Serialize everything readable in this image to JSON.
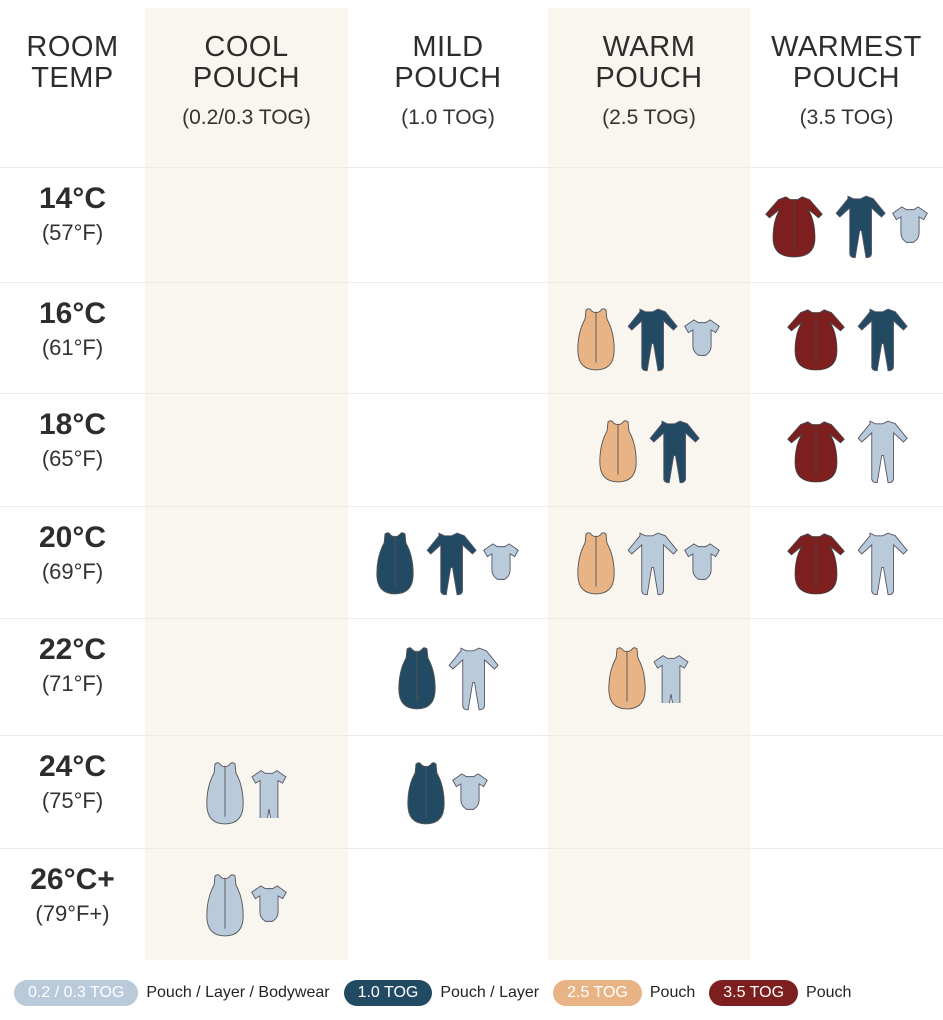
{
  "colors": {
    "cool": "#b9cada",
    "mild": "#234a63",
    "warm": "#e8b485",
    "warmest": "#7e1f1f",
    "column_bg": "#f9f6ef"
  },
  "header": {
    "temp": "ROOM\nTEMP",
    "columns": [
      {
        "title": "COOL\nPOUCH",
        "tog": "(0.2/0.3 TOG)"
      },
      {
        "title": "MILD\nPOUCH",
        "tog": "(1.0 TOG)"
      },
      {
        "title": "WARM\nPOUCH",
        "tog": "(2.5 TOG)"
      },
      {
        "title": "WARMEST\nPOUCH",
        "tog": "(3.5 TOG)"
      }
    ]
  },
  "rows": [
    {
      "c": "14°C",
      "f": "(57°F)",
      "cells": [
        [],
        [],
        [],
        [
          [
            "sleeved-pouch-icon",
            "warmest"
          ],
          [
            "footie-icon",
            "mild"
          ],
          [
            "bodysuit-icon",
            "cool"
          ]
        ]
      ]
    },
    {
      "c": "16°C",
      "f": "(61°F)",
      "cells": [
        [],
        [],
        [
          [
            "pouch-icon",
            "warm"
          ],
          [
            "footie-icon",
            "mild"
          ],
          [
            "bodysuit-icon",
            "cool"
          ]
        ],
        [
          [
            "sleeved-pouch-icon",
            "warmest"
          ],
          [
            "footie-icon",
            "mild"
          ]
        ]
      ]
    },
    {
      "c": "18°C",
      "f": "(65°F)",
      "cells": [
        [],
        [],
        [
          [
            "pouch-icon",
            "warm"
          ],
          [
            "footie-icon",
            "mild"
          ]
        ],
        [
          [
            "sleeved-pouch-icon",
            "warmest"
          ],
          [
            "footie-icon",
            "cool"
          ]
        ]
      ]
    },
    {
      "c": "20°C",
      "f": "(69°F)",
      "cells": [
        [],
        [
          [
            "pouch-icon",
            "mild"
          ],
          [
            "footie-icon",
            "mild"
          ],
          [
            "bodysuit-icon",
            "cool"
          ]
        ],
        [
          [
            "pouch-icon",
            "warm"
          ],
          [
            "footie-icon",
            "cool"
          ],
          [
            "bodysuit-icon",
            "cool"
          ]
        ],
        [
          [
            "sleeved-pouch-icon",
            "warmest"
          ],
          [
            "footie-icon",
            "cool"
          ]
        ]
      ]
    },
    {
      "c": "22°C",
      "f": "(71°F)",
      "cells": [
        [],
        [
          [
            "pouch-icon",
            "mild"
          ],
          [
            "footie-icon",
            "cool"
          ]
        ],
        [
          [
            "pouch-icon",
            "warm"
          ],
          [
            "romper-icon",
            "cool"
          ]
        ],
        []
      ]
    },
    {
      "c": "24°C",
      "f": "(75°F)",
      "cells": [
        [
          [
            "pouch-icon",
            "cool"
          ],
          [
            "romper-icon",
            "cool"
          ]
        ],
        [
          [
            "pouch-icon",
            "mild"
          ],
          [
            "bodysuit-icon",
            "cool"
          ]
        ],
        [],
        []
      ]
    },
    {
      "c": "26°C+",
      "f": "(79°F+)",
      "cells": [
        [
          [
            "pouch-icon",
            "cool"
          ],
          [
            "bodysuit-icon",
            "cool"
          ]
        ],
        [],
        [],
        []
      ]
    }
  ],
  "legend": [
    {
      "pill": "0.2 / 0.3 TOG",
      "text": "Pouch / Layer / Bodywear",
      "color": "cool"
    },
    {
      "pill": "1.0 TOG",
      "text": "Pouch / Layer",
      "color": "mild"
    },
    {
      "pill": "2.5 TOG",
      "text": "Pouch",
      "color": "warm"
    },
    {
      "pill": "3.5 TOG",
      "text": "Pouch",
      "color": "warmest"
    }
  ]
}
